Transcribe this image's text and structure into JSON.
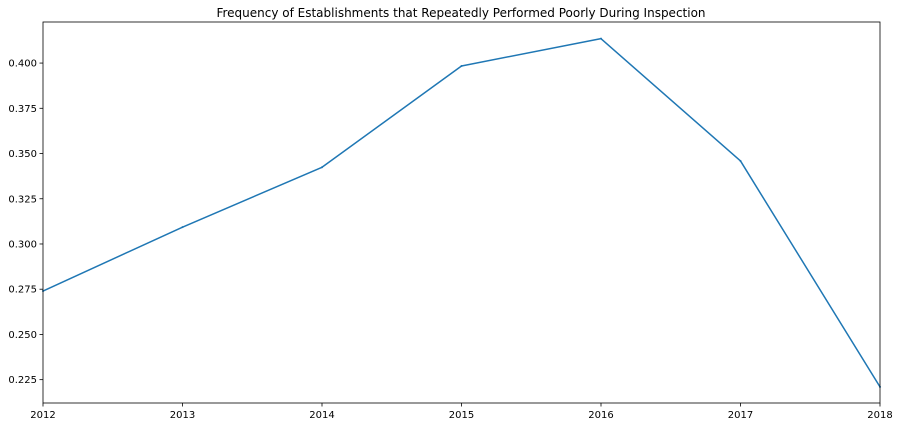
{
  "chart_data": {
    "type": "line",
    "title": "Frequency of Establishments that Repeatedly Performed Poorly During Inspection",
    "xlabel": "",
    "ylabel": "",
    "x": [
      "2012",
      "2013",
      "2014",
      "2015",
      "2016",
      "2017",
      "2018"
    ],
    "series": [
      {
        "values": [
          0.274,
          0.3093,
          0.3424,
          0.3984,
          0.4135,
          0.3459,
          0.221
        ]
      }
    ],
    "xlim": [
      2012,
      2018
    ],
    "ylim": [
      0.2121,
      0.4227
    ],
    "yticks": [
      "0.225",
      "0.250",
      "0.275",
      "0.300",
      "0.325",
      "0.350",
      "0.375",
      "0.400"
    ],
    "grid": false,
    "line_color": "#1f77b4"
  }
}
